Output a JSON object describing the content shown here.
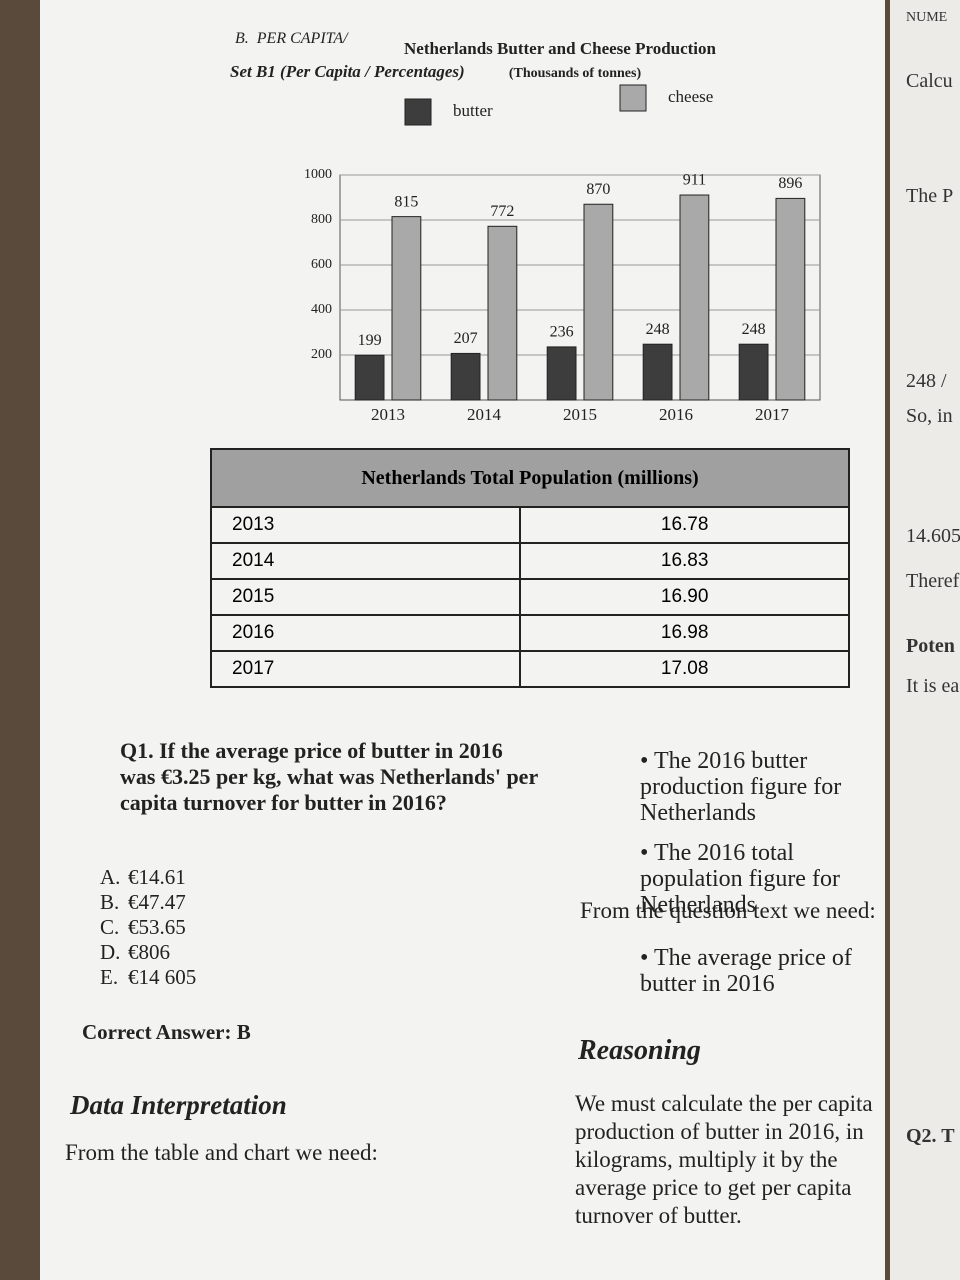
{
  "header": {
    "section": "B.",
    "section_title": "PER CAPITA/",
    "set_title": "Set B1 (Per Capita / Percentages)"
  },
  "chart_data": {
    "type": "bar",
    "title": "Netherlands Butter and Cheese Production",
    "subtitle": "(Thousands of tonnes)",
    "categories": [
      "2013",
      "2014",
      "2015",
      "2016",
      "2017"
    ],
    "series": [
      {
        "name": "butter",
        "color": "#3d3d3d",
        "values": [
          199,
          207,
          236,
          248,
          248
        ]
      },
      {
        "name": "cheese",
        "color": "#a9a9a9",
        "values": [
          815,
          772,
          870,
          911,
          896
        ]
      }
    ],
    "ylim": [
      0,
      1000
    ],
    "yticks": [
      200,
      400,
      600,
      800,
      1000
    ],
    "grid": true
  },
  "table": {
    "title": "Netherlands Total Population (millions)",
    "rows": [
      [
        "2013",
        "16.78"
      ],
      [
        "2014",
        "16.83"
      ],
      [
        "2015",
        "16.90"
      ],
      [
        "2016",
        "16.98"
      ],
      [
        "2017",
        "17.08"
      ]
    ]
  },
  "question": {
    "text": "Q1. If the average price of butter in 2016 was €3.25 per kg, what was Netherlands' per capita turnover for butter in 2016?",
    "options": [
      {
        "letter": "A.",
        "text": "€14.61"
      },
      {
        "letter": "B.",
        "text": "€47.47"
      },
      {
        "letter": "C.",
        "text": "€53.65"
      },
      {
        "letter": "D.",
        "text": "€806"
      },
      {
        "letter": "E.",
        "text": "€14 605"
      }
    ],
    "answer": "Correct Answer: B"
  },
  "explanation": {
    "heading": "Data Interpretation",
    "intro": "From the table and chart we need:",
    "needs": [
      "The 2016 butter production figure for Netherlands",
      "The 2016 total population figure for Netherlands"
    ],
    "question_intro": "From the question text we need:",
    "question_needs": [
      "The average price of butter in 2016"
    ],
    "reasoning_heading": "Reasoning",
    "reasoning": "We must calculate the per capita production of butter in 2016, in kilograms, multiply it by the average price to get per capita turnover of butter."
  },
  "next_page": {
    "header": "NUME",
    "fragments": [
      "Calcu",
      "The P",
      "248 /",
      "So, in",
      "14.605",
      "Theref",
      "Poten",
      "It is ea",
      "Q2. T"
    ]
  }
}
